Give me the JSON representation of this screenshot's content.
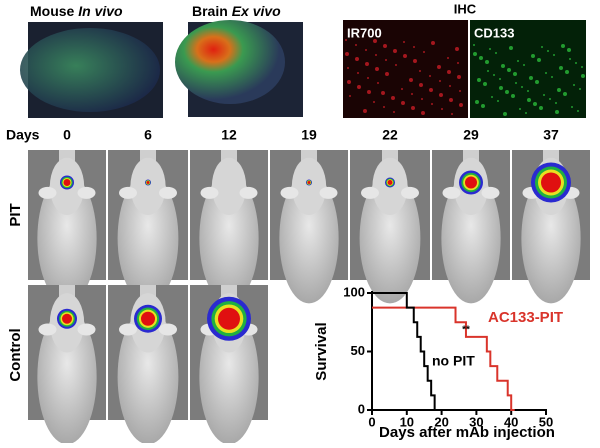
{
  "top_labels": [
    {
      "plain": "Mouse",
      "emph": "In vivo"
    },
    {
      "plain": "Brain",
      "emph": "Ex vivo"
    }
  ],
  "ihc": {
    "title": "IHC",
    "channels": [
      "IR700",
      "CD133"
    ]
  },
  "days_label": "Days",
  "days": [
    "0",
    "6",
    "12",
    "19",
    "22",
    "29",
    "37"
  ],
  "rows": [
    "PIT",
    "Control"
  ],
  "chart_data": {
    "type": "line",
    "drawstyle": "steps-post",
    "xlabel": "Days after mAb injection",
    "ylabel": "Survival",
    "xlim": [
      0,
      50
    ],
    "ylim": [
      0,
      100
    ],
    "xticks": [
      0,
      10,
      20,
      30,
      40,
      50
    ],
    "yticks": [
      0,
      50,
      100
    ],
    "series": [
      {
        "name": "AC133-PIT",
        "color": "#d9342b",
        "x": [
          0,
          24,
          27,
          33,
          34,
          36,
          39,
          40,
          41
        ],
        "values": [
          87.5,
          75,
          62.5,
          50,
          37.5,
          25,
          12.5,
          0,
          0
        ]
      },
      {
        "name": "no PIT",
        "color": "#000000",
        "x": [
          0,
          10,
          12,
          13,
          14,
          15,
          16,
          17,
          18
        ],
        "values": [
          100,
          87.5,
          75,
          62.5,
          50,
          37.5,
          25,
          12.5,
          0
        ]
      }
    ],
    "annotations": [
      "**"
    ]
  }
}
